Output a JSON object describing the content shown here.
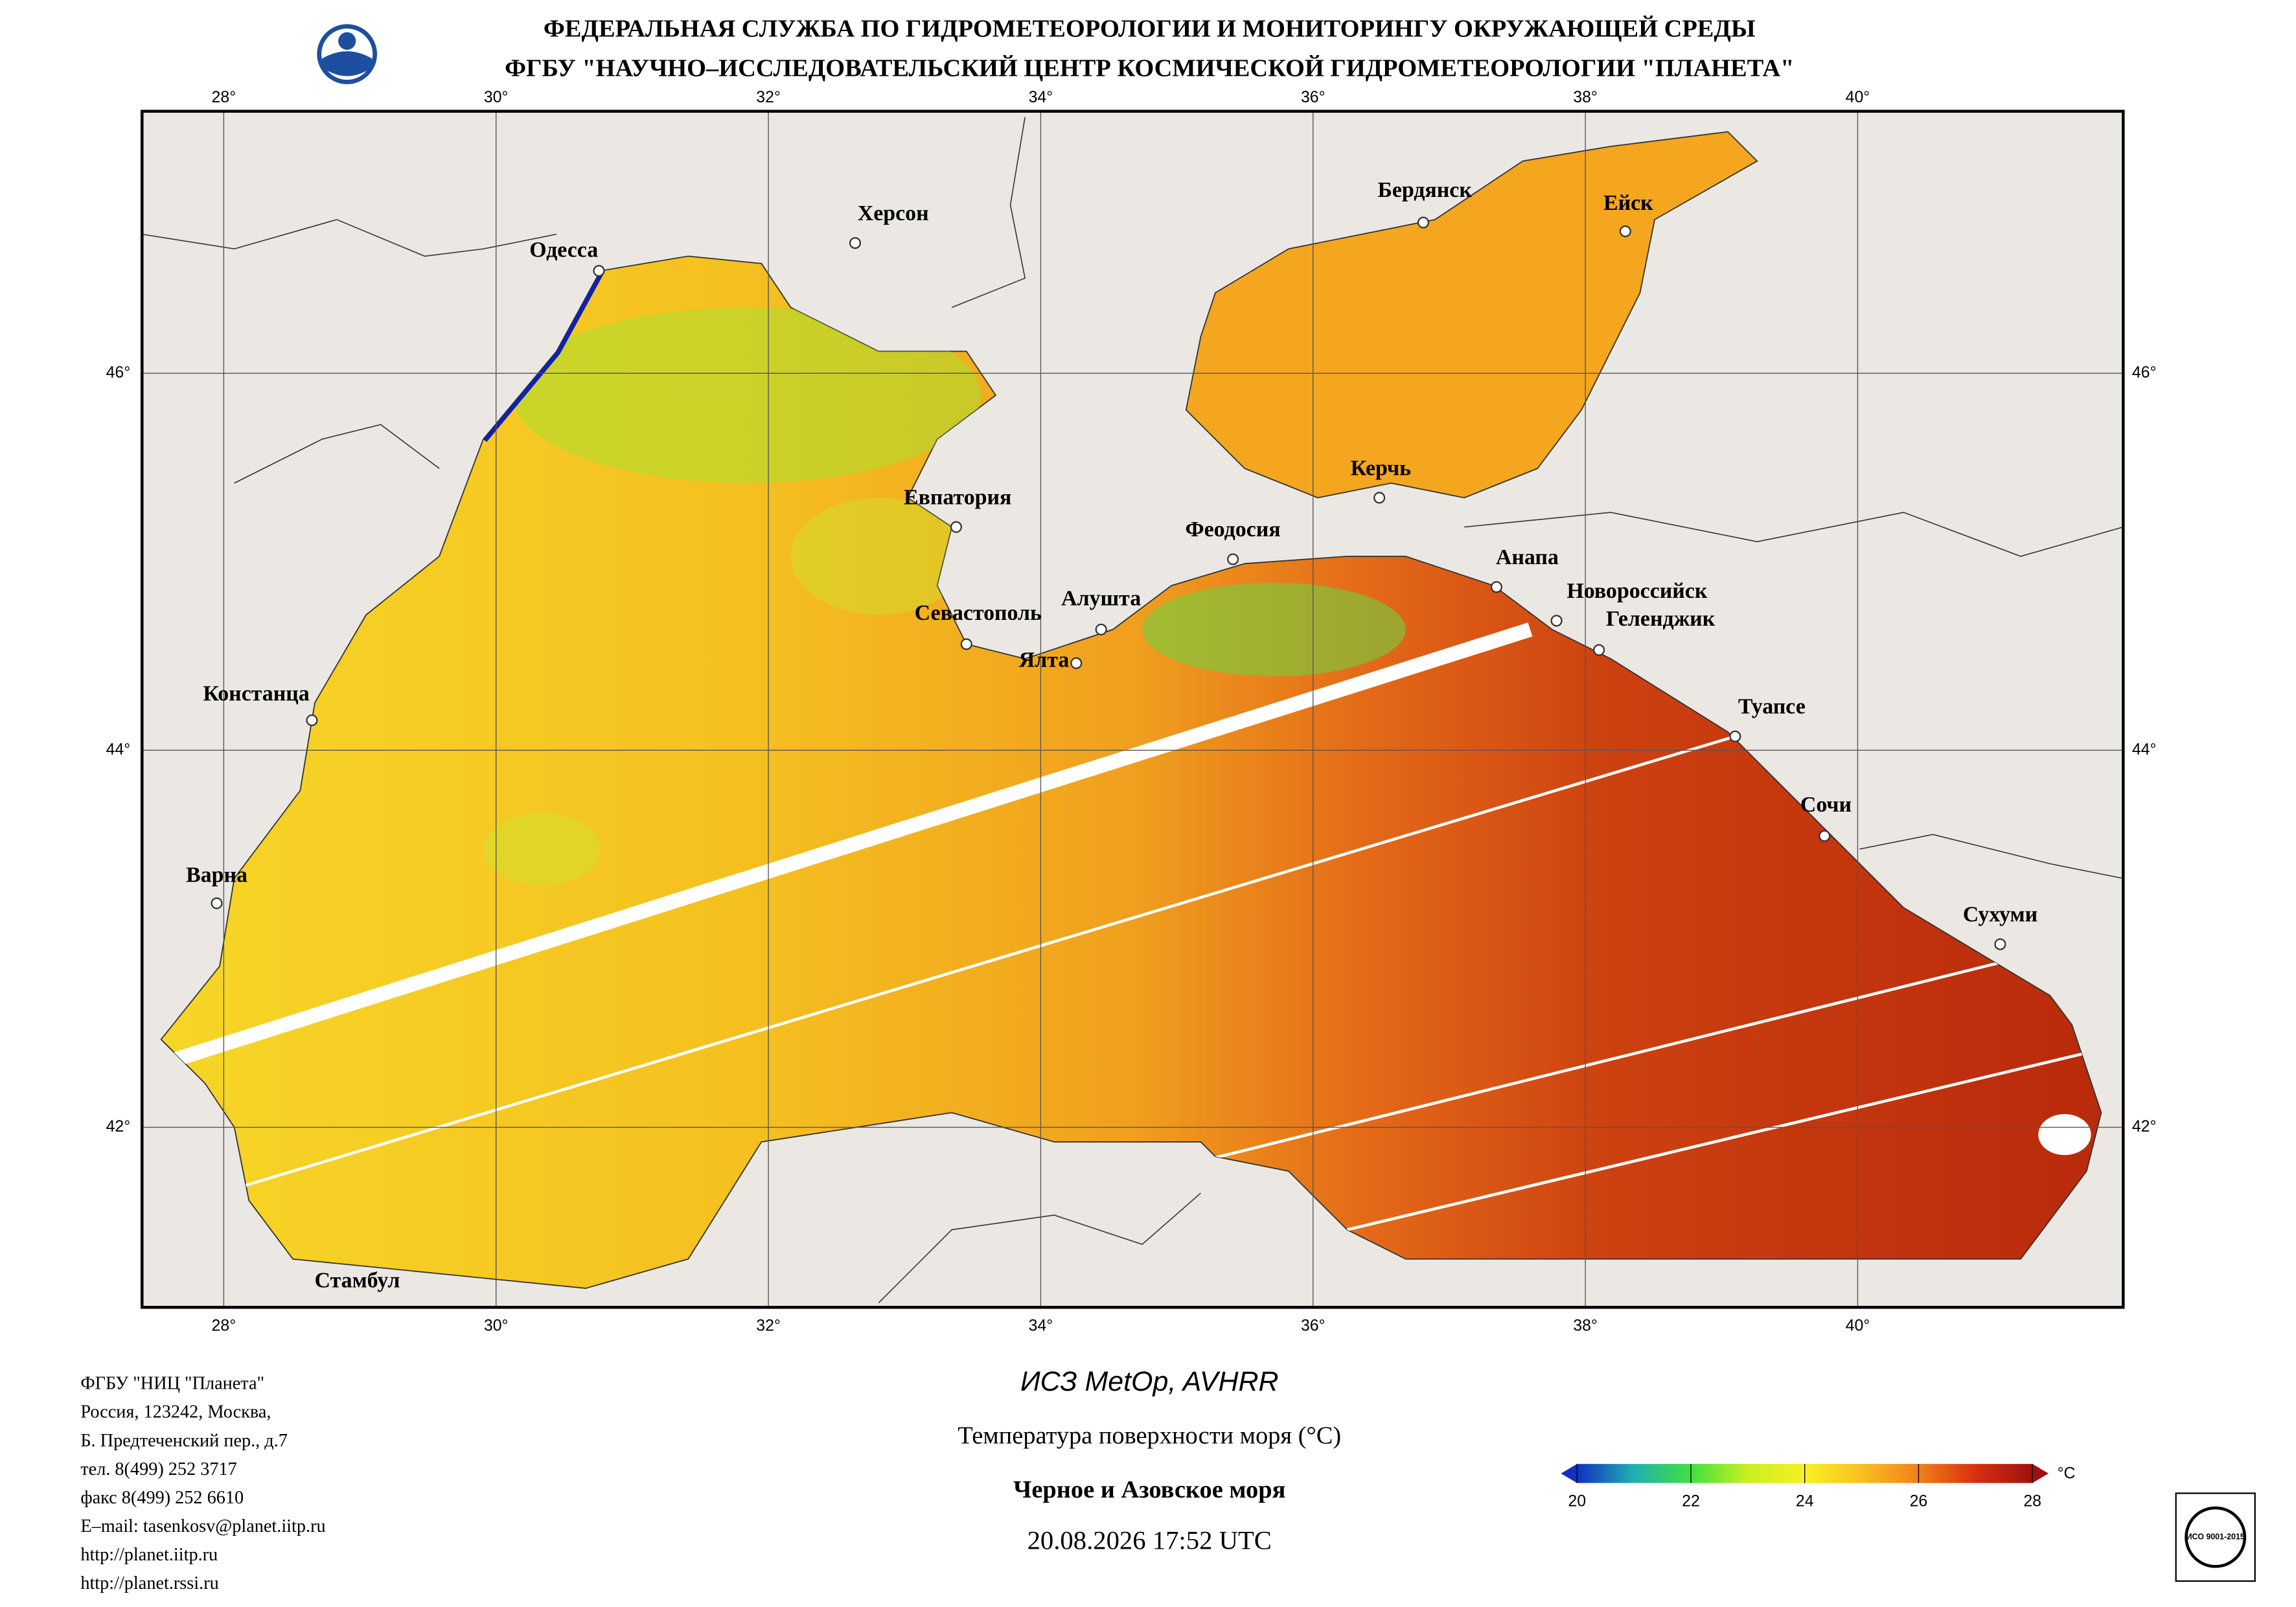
{
  "header": {
    "line1": "ФЕДЕРАЛЬНАЯ СЛУЖБА ПО ГИДРОМЕТЕОРОЛОГИИ И МОНИТОРИНГУ ОКРУЖАЮЩЕЙ СРЕДЫ",
    "line2": "ФГБУ \"НАУЧНО–ИССЛЕДОВАТЕЛЬСКИЙ ЦЕНТР КОСМИЧЕСКОЙ ГИДРОМЕТЕОРОЛОГИИ \"ПЛАНЕТА\""
  },
  "map": {
    "xlim": [
      27.4,
      41.95
    ],
    "ylim": [
      41.045,
      47.39
    ],
    "xticks": [
      {
        "value": 28,
        "label": "28°"
      },
      {
        "value": 30,
        "label": "30°"
      },
      {
        "value": 32,
        "label": "32°"
      },
      {
        "value": 34,
        "label": "34°"
      },
      {
        "value": 36,
        "label": "36°"
      },
      {
        "value": 38,
        "label": "38°"
      },
      {
        "value": 40,
        "label": "40°"
      }
    ],
    "yticks": [
      {
        "value": 42,
        "label": "42°"
      },
      {
        "value": 44,
        "label": "44°"
      },
      {
        "value": 46,
        "label": "46°"
      }
    ],
    "cities": [
      "Одесса",
      "Херсон",
      "Бердянск",
      "Ейск",
      "Евпатория",
      "Керчь",
      "Феодосия",
      "Анапа",
      "Новороссийск",
      "Геленджик",
      "Севастополь",
      "Алушта",
      "Ялта",
      "Констанца",
      "Туапсе",
      "Сочи",
      "Сухуми",
      "Варна",
      "Стамбул"
    ]
  },
  "footer": {
    "contacts": [
      "ФГБУ \"НИЦ \"Планета\"",
      "Россия, 123242, Москва,",
      "Б. Предтеченский пер., д.7",
      "тел. 8(499) 252 3717",
      "факс 8(499) 252 6610",
      "E–mail: tasenkosv@planet.iitp.ru",
      "http://planet.iitp.ru",
      "http://planet.rssi.ru"
    ],
    "satellite": "ИСЗ MetOp, AVHRR",
    "product": "Температура поверхности моря (°C)",
    "region": "Черное и Азовское моря",
    "datetime": "20.08.2026 17:52 UTC",
    "iso": "ИСО 9001-2015"
  },
  "colorbar": {
    "lim": [
      20,
      28
    ],
    "ticks": [
      20,
      22,
      24,
      26,
      28
    ],
    "unit": "°C"
  }
}
